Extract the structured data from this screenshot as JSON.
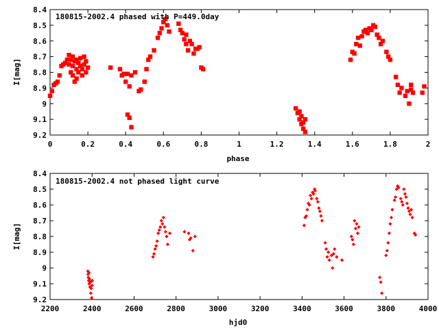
{
  "chart_data": [
    {
      "type": "scatter",
      "title": "180815-2002.4 phased with P=449.0day",
      "xlabel": "phase",
      "ylabel": "I[mag]",
      "xlim": [
        0,
        2
      ],
      "ylim": [
        8.4,
        9.2
      ],
      "y_inverted": true,
      "grid": false,
      "xticks": [
        "0",
        "0.2",
        "0.4",
        "0.6",
        "0.8",
        "1",
        "1.2",
        "1.4",
        "1.6",
        "1.8",
        "2"
      ],
      "yticks": [
        "8.4",
        "8.5",
        "8.6",
        "8.7",
        "8.8",
        "8.9",
        "9",
        "9.1",
        "9.2"
      ],
      "marker_color": "#ff0000",
      "marker": "filled-square",
      "points": [
        [
          0.0,
          8.95
        ],
        [
          0.01,
          8.92
        ],
        [
          0.02,
          8.88
        ],
        [
          0.03,
          8.87
        ],
        [
          0.04,
          8.86
        ],
        [
          0.05,
          8.82
        ],
        [
          0.06,
          8.76
        ],
        [
          0.07,
          8.75
        ],
        [
          0.08,
          8.74
        ],
        [
          0.09,
          8.72
        ],
        [
          0.1,
          8.69
        ],
        [
          0.1,
          8.75
        ],
        [
          0.11,
          8.72
        ],
        [
          0.11,
          8.8
        ],
        [
          0.12,
          8.7
        ],
        [
          0.12,
          8.76
        ],
        [
          0.12,
          8.82
        ],
        [
          0.13,
          8.73
        ],
        [
          0.13,
          8.86
        ],
        [
          0.14,
          8.72
        ],
        [
          0.14,
          8.78
        ],
        [
          0.14,
          8.84
        ],
        [
          0.15,
          8.74
        ],
        [
          0.15,
          8.8
        ],
        [
          0.16,
          8.71
        ],
        [
          0.16,
          8.76
        ],
        [
          0.17,
          8.78
        ],
        [
          0.17,
          8.82
        ],
        [
          0.18,
          8.7
        ],
        [
          0.18,
          8.75
        ],
        [
          0.19,
          8.73
        ],
        [
          0.19,
          8.8
        ],
        [
          0.2,
          8.77
        ],
        [
          0.32,
          8.77
        ],
        [
          0.37,
          8.78
        ],
        [
          0.38,
          8.82
        ],
        [
          0.39,
          8.81
        ],
        [
          0.4,
          8.86
        ],
        [
          0.41,
          8.81
        ],
        [
          0.41,
          9.07
        ],
        [
          0.42,
          9.09
        ],
        [
          0.42,
          8.89
        ],
        [
          0.43,
          8.82
        ],
        [
          0.43,
          9.15
        ],
        [
          0.45,
          8.8
        ],
        [
          0.47,
          8.92
        ],
        [
          0.48,
          8.91
        ],
        [
          0.5,
          8.86
        ],
        [
          0.51,
          8.78
        ],
        [
          0.52,
          8.72
        ],
        [
          0.53,
          8.7
        ],
        [
          0.55,
          8.66
        ],
        [
          0.57,
          8.58
        ],
        [
          0.58,
          8.55
        ],
        [
          0.59,
          8.52
        ],
        [
          0.6,
          8.48
        ],
        [
          0.61,
          8.46
        ],
        [
          0.62,
          8.5
        ],
        [
          0.63,
          8.54
        ],
        [
          0.68,
          8.49
        ],
        [
          0.69,
          8.53
        ],
        [
          0.7,
          8.55
        ],
        [
          0.71,
          8.59
        ],
        [
          0.72,
          8.62
        ],
        [
          0.72,
          8.56
        ],
        [
          0.73,
          8.66
        ],
        [
          0.74,
          8.6
        ],
        [
          0.75,
          8.62
        ],
        [
          0.76,
          8.68
        ],
        [
          0.77,
          8.65
        ],
        [
          0.78,
          8.65
        ],
        [
          0.79,
          8.64
        ],
        [
          0.8,
          8.77
        ],
        [
          0.81,
          8.78
        ],
        [
          1.3,
          9.03
        ],
        [
          1.31,
          9.06
        ],
        [
          1.32,
          9.05
        ],
        [
          1.32,
          9.1
        ],
        [
          1.33,
          9.08
        ],
        [
          1.33,
          9.13
        ],
        [
          1.34,
          9.12
        ],
        [
          1.34,
          9.16
        ],
        [
          1.35,
          9.1
        ],
        [
          1.35,
          9.18
        ],
        [
          1.59,
          8.72
        ],
        [
          1.6,
          8.67
        ],
        [
          1.61,
          8.68
        ],
        [
          1.62,
          8.62
        ],
        [
          1.63,
          8.58
        ],
        [
          1.64,
          8.63
        ],
        [
          1.65,
          8.57
        ],
        [
          1.66,
          8.54
        ],
        [
          1.67,
          8.53
        ],
        [
          1.68,
          8.55
        ],
        [
          1.69,
          8.52
        ],
        [
          1.7,
          8.53
        ],
        [
          1.71,
          8.5
        ],
        [
          1.72,
          8.51
        ],
        [
          1.73,
          8.56
        ],
        [
          1.74,
          8.58
        ],
        [
          1.75,
          8.62
        ],
        [
          1.76,
          8.6
        ],
        [
          1.78,
          8.67
        ],
        [
          1.79,
          8.7
        ],
        [
          1.8,
          8.72
        ],
        [
          1.83,
          8.83
        ],
        [
          1.84,
          8.88
        ],
        [
          1.85,
          8.93
        ],
        [
          1.86,
          8.9
        ],
        [
          1.88,
          8.95
        ],
        [
          1.89,
          8.92
        ],
        [
          1.9,
          9.0
        ],
        [
          1.91,
          8.91
        ],
        [
          1.91,
          8.88
        ],
        [
          1.92,
          8.93
        ],
        [
          1.97,
          8.93
        ],
        [
          1.98,
          8.89
        ]
      ]
    },
    {
      "type": "scatter",
      "title": "180815-2002.4 not phased light curve",
      "xlabel": "hjd0",
      "ylabel": "I[mag]",
      "xlim": [
        2200,
        4000
      ],
      "ylim": [
        8.4,
        9.2
      ],
      "y_inverted": true,
      "grid": false,
      "xticks": [
        "2200",
        "2400",
        "2600",
        "2800",
        "3000",
        "3200",
        "3400",
        "3600",
        "3800",
        "4000"
      ],
      "yticks": [
        "8.4",
        "8.5",
        "8.6",
        "8.7",
        "8.8",
        "8.9",
        "9",
        "9.1",
        "9.2"
      ],
      "marker_color": "#ff0000",
      "marker": "filled-diamond",
      "points": [
        [
          2380,
          9.02
        ],
        [
          2381,
          9.04
        ],
        [
          2382,
          9.06
        ],
        [
          2384,
          9.08
        ],
        [
          2385,
          9.03
        ],
        [
          2386,
          9.1
        ],
        [
          2388,
          9.07
        ],
        [
          2390,
          9.12
        ],
        [
          2392,
          9.09
        ],
        [
          2394,
          9.16
        ],
        [
          2396,
          9.13
        ],
        [
          2398,
          9.19
        ],
        [
          2400,
          9.11
        ],
        [
          2401,
          9.08
        ],
        [
          2690,
          8.93
        ],
        [
          2695,
          8.91
        ],
        [
          2700,
          8.88
        ],
        [
          2705,
          8.86
        ],
        [
          2710,
          8.83
        ],
        [
          2715,
          8.78
        ],
        [
          2720,
          8.76
        ],
        [
          2725,
          8.74
        ],
        [
          2730,
          8.7
        ],
        [
          2735,
          8.72
        ],
        [
          2740,
          8.68
        ],
        [
          2745,
          8.74
        ],
        [
          2750,
          8.77
        ],
        [
          2755,
          8.8
        ],
        [
          2760,
          8.85
        ],
        [
          2770,
          8.78
        ],
        [
          2840,
          8.77
        ],
        [
          2860,
          8.78
        ],
        [
          2865,
          8.82
        ],
        [
          2870,
          8.81
        ],
        [
          2880,
          8.89
        ],
        [
          2890,
          8.8
        ],
        [
          3410,
          8.73
        ],
        [
          3415,
          8.68
        ],
        [
          3420,
          8.67
        ],
        [
          3425,
          8.63
        ],
        [
          3430,
          8.59
        ],
        [
          3435,
          8.6
        ],
        [
          3440,
          8.54
        ],
        [
          3445,
          8.56
        ],
        [
          3450,
          8.52
        ],
        [
          3455,
          8.53
        ],
        [
          3460,
          8.5
        ],
        [
          3462,
          8.51
        ],
        [
          3470,
          8.56
        ],
        [
          3475,
          8.58
        ],
        [
          3480,
          8.62
        ],
        [
          3485,
          8.64
        ],
        [
          3490,
          8.67
        ],
        [
          3495,
          8.7
        ],
        [
          3510,
          8.84
        ],
        [
          3515,
          8.88
        ],
        [
          3520,
          8.93
        ],
        [
          3525,
          8.9
        ],
        [
          3530,
          8.95
        ],
        [
          3540,
          8.92
        ],
        [
          3545,
          9.0
        ],
        [
          3550,
          8.91
        ],
        [
          3555,
          8.88
        ],
        [
          3565,
          8.93
        ],
        [
          3590,
          8.95
        ],
        [
          3635,
          8.8
        ],
        [
          3640,
          8.82
        ],
        [
          3645,
          8.85
        ],
        [
          3650,
          8.7
        ],
        [
          3655,
          8.75
        ],
        [
          3660,
          8.72
        ],
        [
          3665,
          8.78
        ],
        [
          3670,
          8.74
        ],
        [
          3770,
          9.06
        ],
        [
          3775,
          9.09
        ],
        [
          3780,
          9.16
        ],
        [
          3800,
          8.92
        ],
        [
          3805,
          8.89
        ],
        [
          3810,
          8.84
        ],
        [
          3815,
          8.78
        ],
        [
          3820,
          8.72
        ],
        [
          3825,
          8.68
        ],
        [
          3830,
          8.63
        ],
        [
          3840,
          8.57
        ],
        [
          3845,
          8.55
        ],
        [
          3850,
          8.5
        ],
        [
          3855,
          8.48
        ],
        [
          3860,
          8.49
        ],
        [
          3870,
          8.56
        ],
        [
          3875,
          8.58
        ],
        [
          3880,
          8.6
        ],
        [
          3885,
          8.5
        ],
        [
          3890,
          8.53
        ],
        [
          3895,
          8.55
        ],
        [
          3900,
          8.59
        ],
        [
          3905,
          8.62
        ],
        [
          3910,
          8.64
        ],
        [
          3915,
          8.66
        ],
        [
          3920,
          8.63
        ],
        [
          3925,
          8.68
        ],
        [
          3935,
          8.78
        ],
        [
          3940,
          8.79
        ]
      ]
    }
  ]
}
